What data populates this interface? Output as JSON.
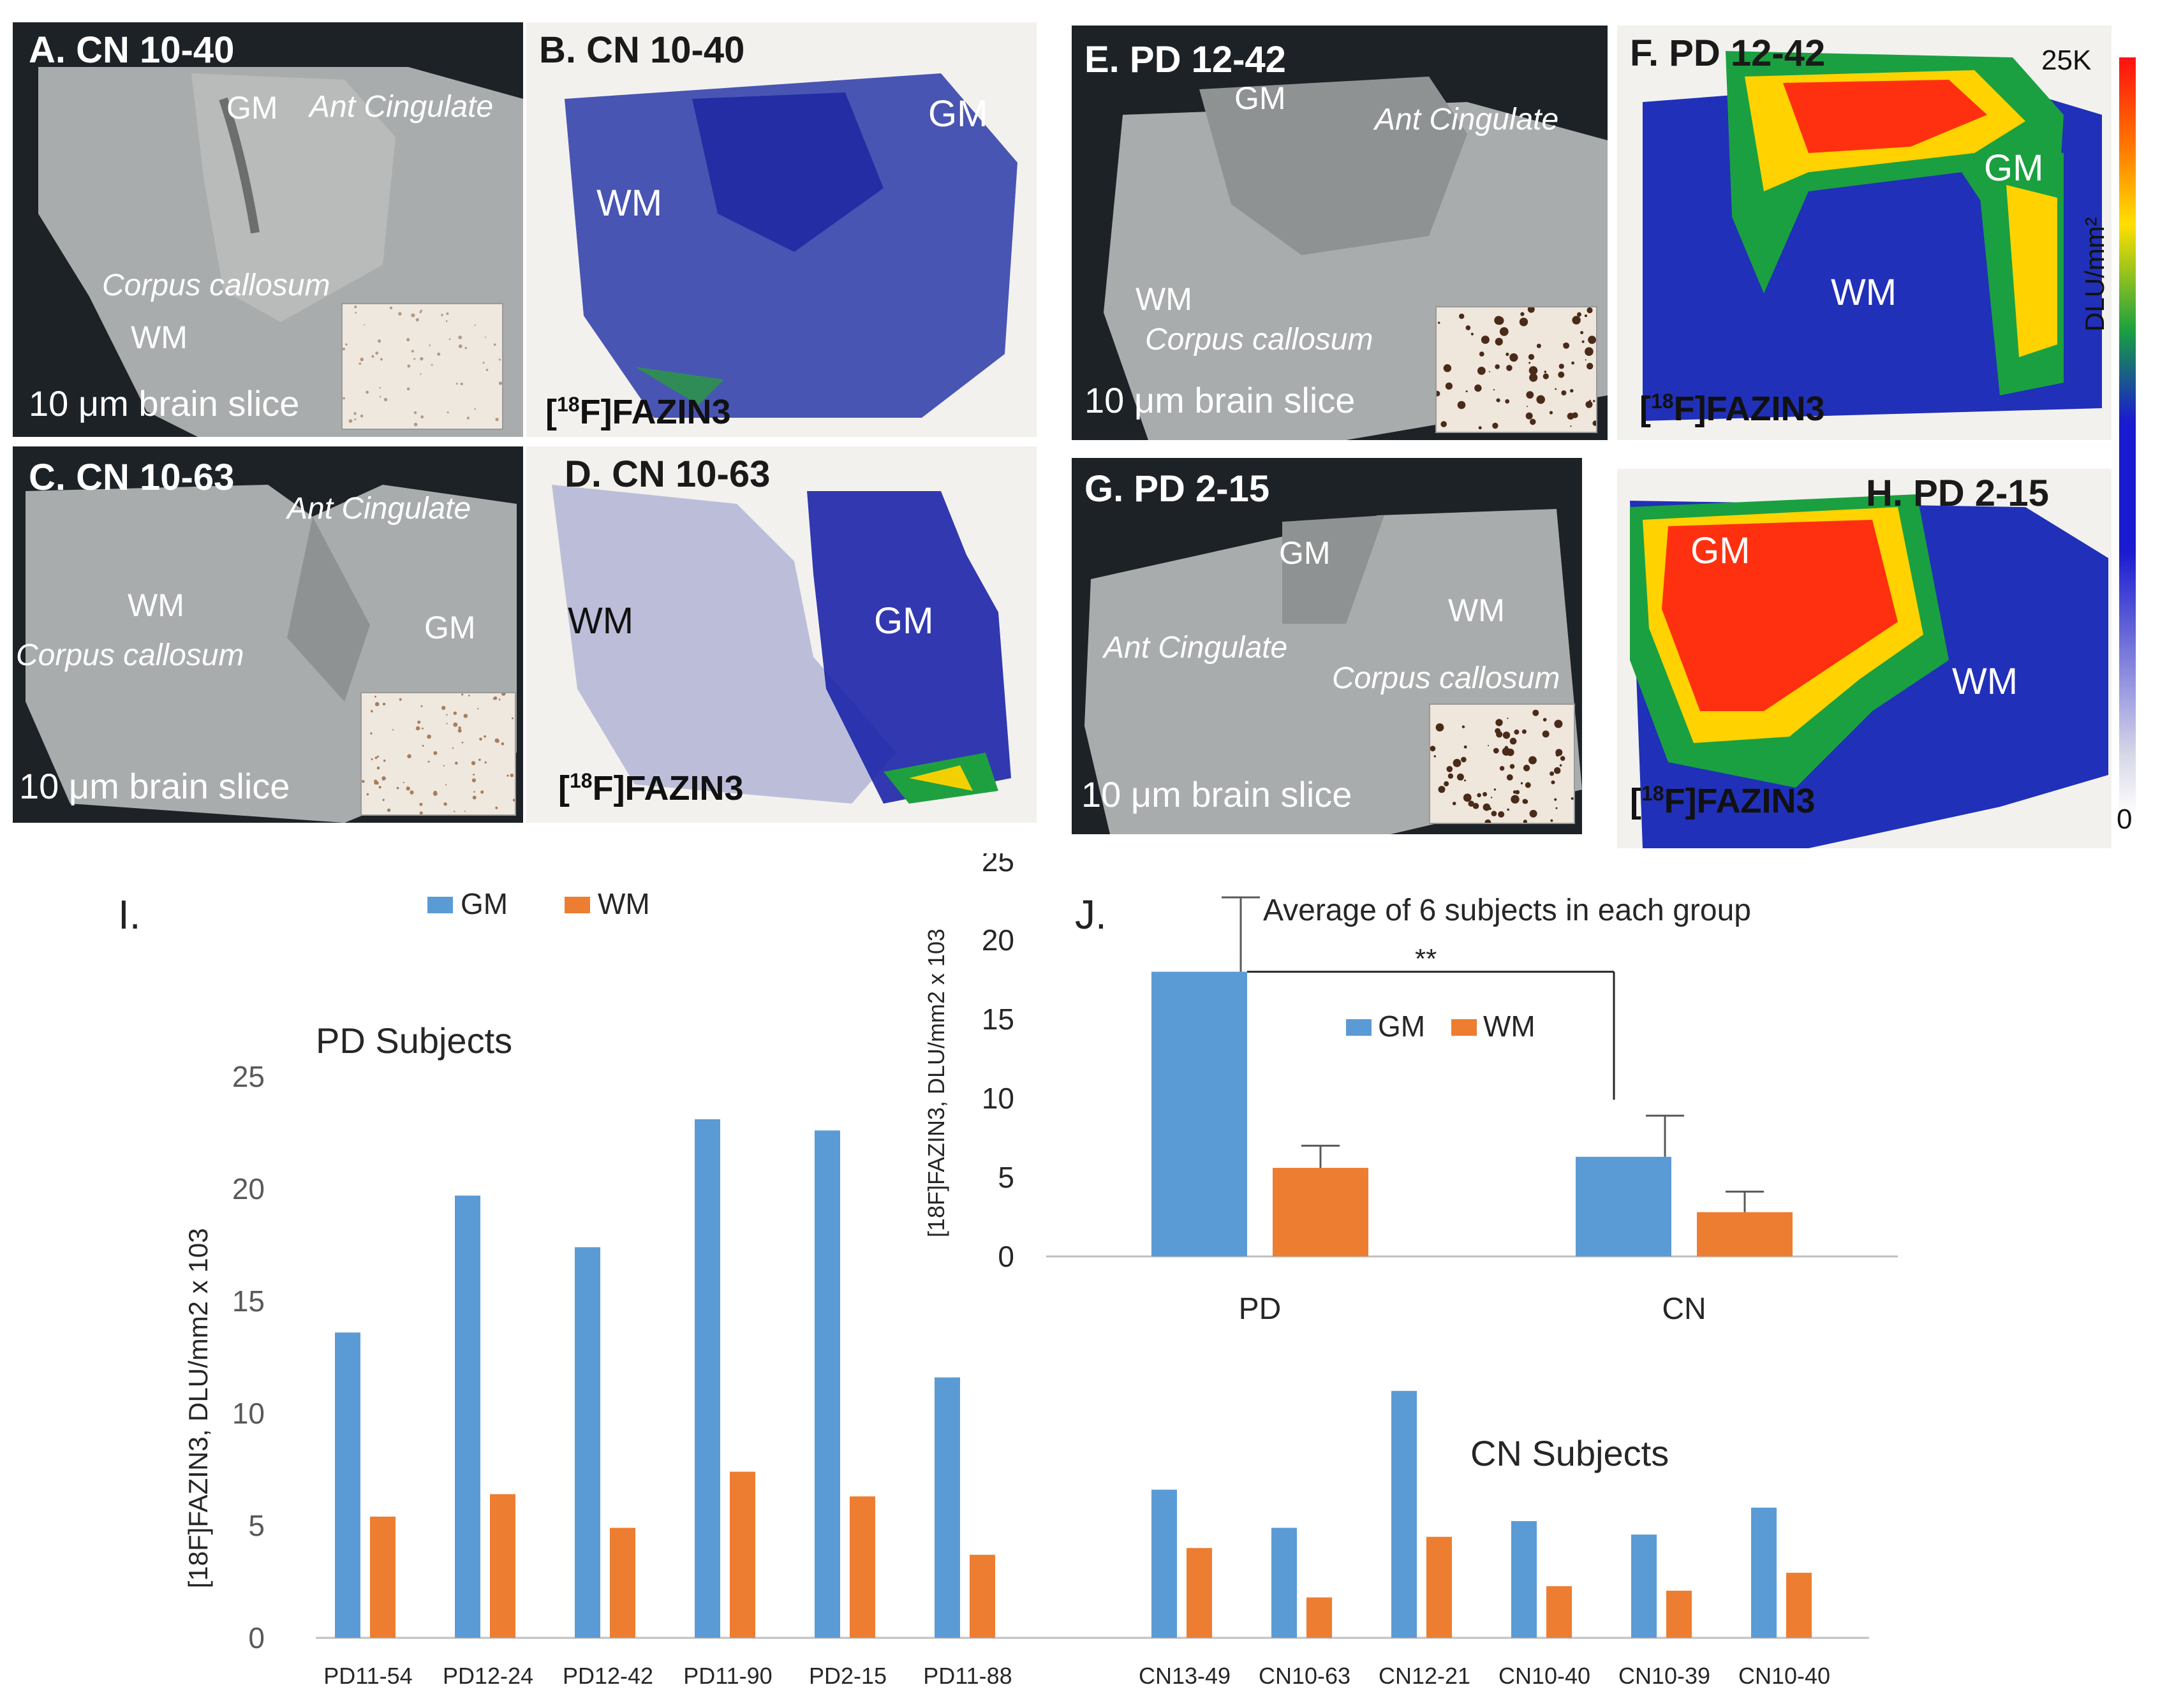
{
  "panels": {
    "A": {
      "label": "A. CN 10-40",
      "gm": "GM",
      "ant": "Ant Cingulate",
      "cc": "Corpus callosum",
      "wm": "WM",
      "slice": "10 μm brain slice"
    },
    "B": {
      "label": "B. CN 10-40",
      "gm": "GM",
      "wm": "WM",
      "tracer_pre": "[",
      "tracer_sup": "18",
      "tracer_post": "F]FAZIN3"
    },
    "C": {
      "label": "C. CN 10-63",
      "ant": "Ant Cingulate",
      "wm": "WM",
      "cc": "Corpus callosum",
      "gm": "GM",
      "slice": "10 μm brain slice"
    },
    "D": {
      "label": "D. CN 10-63",
      "wm": "WM",
      "gm": "GM",
      "tracer_pre": "[",
      "tracer_sup": "18",
      "tracer_post": "F]FAZIN3"
    },
    "E": {
      "label": "E. PD 12-42",
      "gm": "GM",
      "ant": "Ant Cingulate",
      "wm": "WM",
      "cc": "Corpus callosum",
      "slice": "10 μm brain slice"
    },
    "F": {
      "label": "F. PD 12-42",
      "gm": "GM",
      "wm": "WM",
      "tracer_pre": "[",
      "tracer_sup": "18",
      "tracer_post": "F]FAZIN3"
    },
    "G": {
      "label": "G. PD 2-15",
      "gm": "GM",
      "wm": "WM",
      "ant": "Ant Cingulate",
      "cc": "Corpus callosum",
      "slice": "10 μm brain slice"
    },
    "H": {
      "label": "H. PD 2-15",
      "gm": "GM",
      "wm": "WM",
      "tracer_pre": "[",
      "tracer_sup": "18",
      "tracer_post": "F]FAZIN3"
    }
  },
  "colorbar": {
    "max": "25K",
    "min": "0",
    "unit": "DLU/mm²"
  },
  "colors": {
    "gm": "#5b9bd5",
    "wm": "#ed7d31"
  },
  "chart_data": [
    {
      "type": "bar",
      "panel": "I.",
      "title": "",
      "annotations": [
        "PD Subjects",
        "CN Subjects"
      ],
      "legend": [
        "GM",
        "WM"
      ],
      "legend_position": "top",
      "ylabel": "[18F]FAZIN3, DLU/mm2 x 103",
      "ylim": [
        0,
        25
      ],
      "yticks": [
        0,
        5,
        10,
        15,
        20,
        25
      ],
      "categories": [
        "PD11-54",
        "PD12-24",
        "PD12-42",
        "PD11-90",
        "PD2-15",
        "PD11-88",
        "CN13-49",
        "CN10-63",
        "CN12-21",
        "CN10-40",
        "CN10-39",
        "CN10-40"
      ],
      "series": [
        {
          "name": "GM",
          "values": [
            13.6,
            19.7,
            17.4,
            23.1,
            22.6,
            11.6,
            6.6,
            4.9,
            11.0,
            5.2,
            4.6,
            5.8
          ]
        },
        {
          "name": "WM",
          "values": [
            5.4,
            6.4,
            4.9,
            7.4,
            6.3,
            3.7,
            4.0,
            1.8,
            4.5,
            2.3,
            2.1,
            2.9
          ]
        }
      ]
    },
    {
      "type": "bar",
      "panel": "J.",
      "title": "Average of 6 subjects in each group",
      "legend": [
        "GM",
        "WM"
      ],
      "legend_position": "center",
      "ylabel": "[18F]FAZIN3, DLU/mm2 x 103",
      "ylim": [
        0,
        25
      ],
      "yticks": [
        0,
        5,
        10,
        15,
        20,
        25
      ],
      "categories": [
        "PD",
        "CN"
      ],
      "series": [
        {
          "name": "GM",
          "values": [
            18.0,
            6.3
          ],
          "errors": [
            4.7,
            2.6
          ]
        },
        {
          "name": "WM",
          "values": [
            5.6,
            2.8
          ],
          "errors": [
            1.4,
            1.3
          ]
        }
      ],
      "significance": "**"
    }
  ]
}
